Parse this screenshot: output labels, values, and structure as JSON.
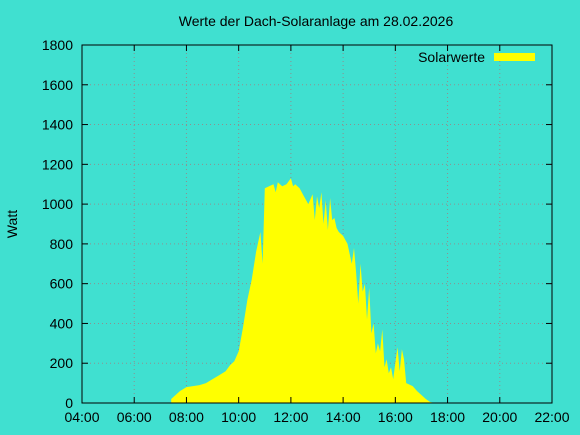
{
  "colors": {
    "background": "#40e0d0",
    "series_fill": "#ffff00",
    "grid": "#8f8f8f",
    "axis": "#000000"
  },
  "chart_data": {
    "type": "area",
    "title": "Werte der Dach-Solaranlage am 28.02.2026",
    "xlabel": "",
    "ylabel": "Watt",
    "xlim": [
      "04:00",
      "22:00"
    ],
    "ylim": [
      0,
      1800
    ],
    "x_ticks": [
      "04:00",
      "06:00",
      "08:00",
      "10:00",
      "12:00",
      "14:00",
      "16:00",
      "18:00",
      "20:00",
      "22:00"
    ],
    "y_ticks": [
      0,
      200,
      400,
      600,
      800,
      1000,
      1200,
      1400,
      1600,
      1800
    ],
    "grid": true,
    "legend": {
      "position": "top-right",
      "entries": [
        "Solarwerte"
      ]
    },
    "series": [
      {
        "name": "Solarwerte",
        "x": [
          "07:25",
          "07:35",
          "07:45",
          "08:00",
          "08:15",
          "08:30",
          "08:45",
          "09:00",
          "09:15",
          "09:30",
          "09:40",
          "09:50",
          "10:00",
          "10:10",
          "10:20",
          "10:30",
          "10:40",
          "10:50",
          "10:55",
          "11:00",
          "11:10",
          "11:20",
          "11:25",
          "11:30",
          "11:40",
          "11:50",
          "12:00",
          "12:05",
          "12:10",
          "12:20",
          "12:30",
          "12:40",
          "12:50",
          "12:55",
          "13:00",
          "13:05",
          "13:10",
          "13:15",
          "13:20",
          "13:25",
          "13:30",
          "13:35",
          "13:40",
          "13:45",
          "13:50",
          "14:00",
          "14:10",
          "14:20",
          "14:25",
          "14:30",
          "14:35",
          "14:40",
          "14:45",
          "14:50",
          "14:55",
          "15:00",
          "15:05",
          "15:10",
          "15:15",
          "15:20",
          "15:25",
          "15:30",
          "15:35",
          "15:40",
          "15:45",
          "15:50",
          "15:55",
          "16:00",
          "16:05",
          "16:10",
          "16:15",
          "16:20",
          "16:25",
          "16:30",
          "16:40",
          "16:50",
          "17:00",
          "17:10",
          "17:20",
          "17:30"
        ],
        "values": [
          20,
          40,
          60,
          80,
          85,
          90,
          100,
          120,
          140,
          160,
          190,
          210,
          260,
          380,
          520,
          620,
          760,
          860,
          700,
          1080,
          1090,
          1100,
          1060,
          1110,
          1090,
          1100,
          1130,
          1090,
          1100,
          1080,
          1040,
          1000,
          1050,
          920,
          1040,
          980,
          1060,
          900,
          1020,
          870,
          1030,
          920,
          930,
          880,
          860,
          840,
          800,
          700,
          780,
          650,
          500,
          700,
          560,
          600,
          420,
          580,
          350,
          400,
          250,
          300,
          260,
          370,
          180,
          220,
          150,
          180,
          120,
          200,
          280,
          160,
          270,
          220,
          100,
          95,
          85,
          60,
          40,
          20,
          5,
          0
        ]
      }
    ]
  }
}
